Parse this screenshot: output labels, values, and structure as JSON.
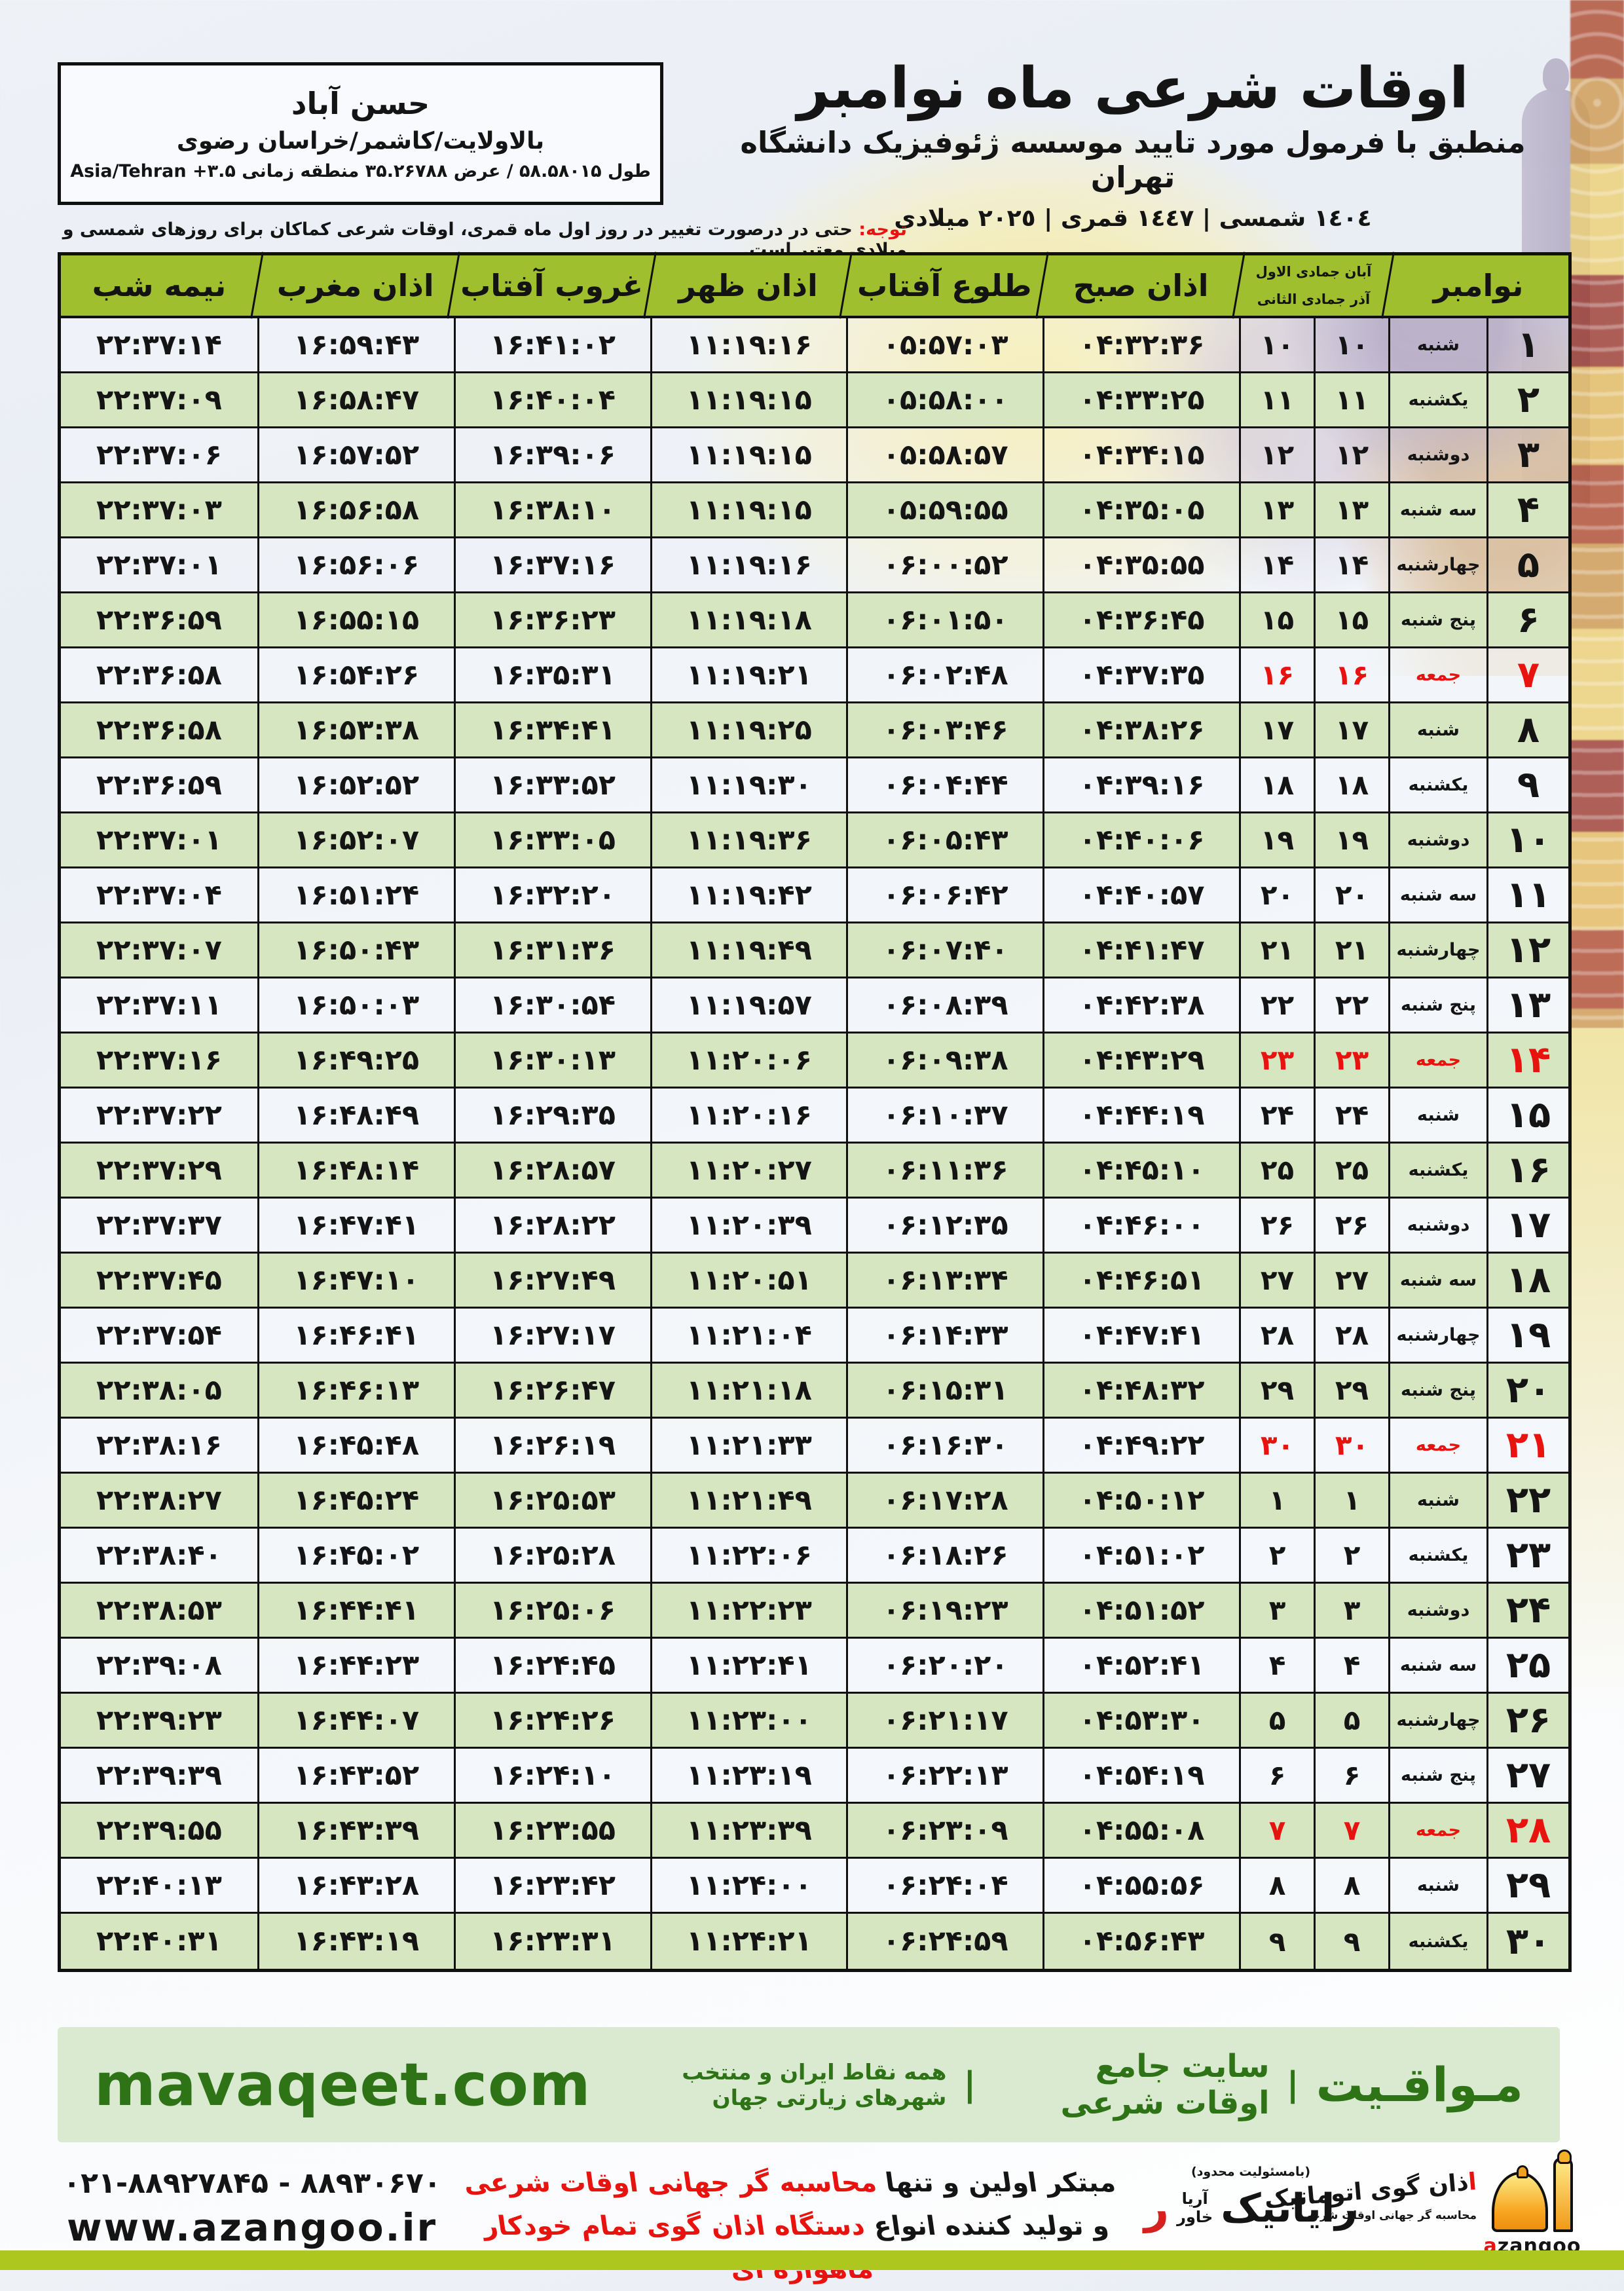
{
  "location_box": {
    "city": "حسن آباد",
    "region": "بالاولایت/کاشمر/خراسان رضوی",
    "coords": "طول ۵۸.۵۸۰۱۵ / عرض ۳۵.۲۶۷۸۸ منطقه زمانی Asia/Tehran +۳.۵"
  },
  "header": {
    "title": "اوقات شرعی ماه نوامبر",
    "subtitle": "منطبق با فرمول مورد تایید موسسه ژئوفیزیک دانشگاه تهران",
    "years": "١٤٠٤ شمسی | ١٤٤٧ قمری | ٢٠٢٥ میلادی"
  },
  "notice": {
    "label": "توجه:",
    "text": " حتی در درصورت تغییر در روز اول ماه قمری، اوقات شرعی کماکان برای روزهای شمسی و میلادی معتبر است."
  },
  "table": {
    "month_col": "نوامبر",
    "sub_col_top": "آبان  جمادی الاول",
    "sub_col_bottom": "آذر  جمادی الثانی",
    "time_cols": [
      "اذان صبح",
      "طلوع آفتاب",
      "اذان ظهر",
      "غروب آفتاب",
      "اذان مغرب",
      "نیمه شب"
    ],
    "rows": [
      {
        "day": "۱",
        "weekday": "شنبه",
        "solar": "۱۰",
        "lunar": "۱۰",
        "friday": false,
        "times": [
          "۰۴:۳۲:۳۶",
          "۰۵:۵۷:۰۳",
          "۱۱:۱۹:۱۶",
          "۱۶:۴۱:۰۲",
          "۱۶:۵۹:۴۳",
          "۲۲:۳۷:۱۴"
        ]
      },
      {
        "day": "۲",
        "weekday": "یکشنبه",
        "solar": "۱۱",
        "lunar": "۱۱",
        "friday": false,
        "times": [
          "۰۴:۳۳:۲۵",
          "۰۵:۵۸:۰۰",
          "۱۱:۱۹:۱۵",
          "۱۶:۴۰:۰۴",
          "۱۶:۵۸:۴۷",
          "۲۲:۳۷:۰۹"
        ]
      },
      {
        "day": "۳",
        "weekday": "دوشنبه",
        "solar": "۱۲",
        "lunar": "۱۲",
        "friday": false,
        "times": [
          "۰۴:۳۴:۱۵",
          "۰۵:۵۸:۵۷",
          "۱۱:۱۹:۱۵",
          "۱۶:۳۹:۰۶",
          "۱۶:۵۷:۵۲",
          "۲۲:۳۷:۰۶"
        ]
      },
      {
        "day": "۴",
        "weekday": "سه شنبه",
        "solar": "۱۳",
        "lunar": "۱۳",
        "friday": false,
        "times": [
          "۰۴:۳۵:۰۵",
          "۰۵:۵۹:۵۵",
          "۱۱:۱۹:۱۵",
          "۱۶:۳۸:۱۰",
          "۱۶:۵۶:۵۸",
          "۲۲:۳۷:۰۳"
        ]
      },
      {
        "day": "۵",
        "weekday": "چهارشنبه",
        "solar": "۱۴",
        "lunar": "۱۴",
        "friday": false,
        "times": [
          "۰۴:۳۵:۵۵",
          "۰۶:۰۰:۵۲",
          "۱۱:۱۹:۱۶",
          "۱۶:۳۷:۱۶",
          "۱۶:۵۶:۰۶",
          "۲۲:۳۷:۰۱"
        ]
      },
      {
        "day": "۶",
        "weekday": "پنج شنبه",
        "solar": "۱۵",
        "lunar": "۱۵",
        "friday": false,
        "times": [
          "۰۴:۳۶:۴۵",
          "۰۶:۰۱:۵۰",
          "۱۱:۱۹:۱۸",
          "۱۶:۳۶:۲۳",
          "۱۶:۵۵:۱۵",
          "۲۲:۳۶:۵۹"
        ]
      },
      {
        "day": "۷",
        "weekday": "جمعه",
        "solar": "۱۶",
        "lunar": "۱۶",
        "friday": true,
        "times": [
          "۰۴:۳۷:۳۵",
          "۰۶:۰۲:۴۸",
          "۱۱:۱۹:۲۱",
          "۱۶:۳۵:۳۱",
          "۱۶:۵۴:۲۶",
          "۲۲:۳۶:۵۸"
        ]
      },
      {
        "day": "۸",
        "weekday": "شنبه",
        "solar": "۱۷",
        "lunar": "۱۷",
        "friday": false,
        "times": [
          "۰۴:۳۸:۲۶",
          "۰۶:۰۳:۴۶",
          "۱۱:۱۹:۲۵",
          "۱۶:۳۴:۴۱",
          "۱۶:۵۳:۳۸",
          "۲۲:۳۶:۵۸"
        ]
      },
      {
        "day": "۹",
        "weekday": "یکشنبه",
        "solar": "۱۸",
        "lunar": "۱۸",
        "friday": false,
        "times": [
          "۰۴:۳۹:۱۶",
          "۰۶:۰۴:۴۴",
          "۱۱:۱۹:۳۰",
          "۱۶:۳۳:۵۲",
          "۱۶:۵۲:۵۲",
          "۲۲:۳۶:۵۹"
        ]
      },
      {
        "day": "۱۰",
        "weekday": "دوشنبه",
        "solar": "۱۹",
        "lunar": "۱۹",
        "friday": false,
        "times": [
          "۰۴:۴۰:۰۶",
          "۰۶:۰۵:۴۳",
          "۱۱:۱۹:۳۶",
          "۱۶:۳۳:۰۵",
          "۱۶:۵۲:۰۷",
          "۲۲:۳۷:۰۱"
        ]
      },
      {
        "day": "۱۱",
        "weekday": "سه شنبه",
        "solar": "۲۰",
        "lunar": "۲۰",
        "friday": false,
        "times": [
          "۰۴:۴۰:۵۷",
          "۰۶:۰۶:۴۲",
          "۱۱:۱۹:۴۲",
          "۱۶:۳۲:۲۰",
          "۱۶:۵۱:۲۴",
          "۲۲:۳۷:۰۴"
        ]
      },
      {
        "day": "۱۲",
        "weekday": "چهارشنبه",
        "solar": "۲۱",
        "lunar": "۲۱",
        "friday": false,
        "times": [
          "۰۴:۴۱:۴۷",
          "۰۶:۰۷:۴۰",
          "۱۱:۱۹:۴۹",
          "۱۶:۳۱:۳۶",
          "۱۶:۵۰:۴۳",
          "۲۲:۳۷:۰۷"
        ]
      },
      {
        "day": "۱۳",
        "weekday": "پنج شنبه",
        "solar": "۲۲",
        "lunar": "۲۲",
        "friday": false,
        "times": [
          "۰۴:۴۲:۳۸",
          "۰۶:۰۸:۳۹",
          "۱۱:۱۹:۵۷",
          "۱۶:۳۰:۵۴",
          "۱۶:۵۰:۰۳",
          "۲۲:۳۷:۱۱"
        ]
      },
      {
        "day": "۱۴",
        "weekday": "جمعه",
        "solar": "۲۳",
        "lunar": "۲۳",
        "friday": true,
        "times": [
          "۰۴:۴۳:۲۹",
          "۰۶:۰۹:۳۸",
          "۱۱:۲۰:۰۶",
          "۱۶:۳۰:۱۳",
          "۱۶:۴۹:۲۵",
          "۲۲:۳۷:۱۶"
        ]
      },
      {
        "day": "۱۵",
        "weekday": "شنبه",
        "solar": "۲۴",
        "lunar": "۲۴",
        "friday": false,
        "times": [
          "۰۴:۴۴:۱۹",
          "۰۶:۱۰:۳۷",
          "۱۱:۲۰:۱۶",
          "۱۶:۲۹:۳۵",
          "۱۶:۴۸:۴۹",
          "۲۲:۳۷:۲۲"
        ]
      },
      {
        "day": "۱۶",
        "weekday": "یکشنبه",
        "solar": "۲۵",
        "lunar": "۲۵",
        "friday": false,
        "times": [
          "۰۴:۴۵:۱۰",
          "۰۶:۱۱:۳۶",
          "۱۱:۲۰:۲۷",
          "۱۶:۲۸:۵۷",
          "۱۶:۴۸:۱۴",
          "۲۲:۳۷:۲۹"
        ]
      },
      {
        "day": "۱۷",
        "weekday": "دوشنبه",
        "solar": "۲۶",
        "lunar": "۲۶",
        "friday": false,
        "times": [
          "۰۴:۴۶:۰۰",
          "۰۶:۱۲:۳۵",
          "۱۱:۲۰:۳۹",
          "۱۶:۲۸:۲۲",
          "۱۶:۴۷:۴۱",
          "۲۲:۳۷:۳۷"
        ]
      },
      {
        "day": "۱۸",
        "weekday": "سه شنبه",
        "solar": "۲۷",
        "lunar": "۲۷",
        "friday": false,
        "times": [
          "۰۴:۴۶:۵۱",
          "۰۶:۱۳:۳۴",
          "۱۱:۲۰:۵۱",
          "۱۶:۲۷:۴۹",
          "۱۶:۴۷:۱۰",
          "۲۲:۳۷:۴۵"
        ]
      },
      {
        "day": "۱۹",
        "weekday": "چهارشنبه",
        "solar": "۲۸",
        "lunar": "۲۸",
        "friday": false,
        "times": [
          "۰۴:۴۷:۴۱",
          "۰۶:۱۴:۳۳",
          "۱۱:۲۱:۰۴",
          "۱۶:۲۷:۱۷",
          "۱۶:۴۶:۴۱",
          "۲۲:۳۷:۵۴"
        ]
      },
      {
        "day": "۲۰",
        "weekday": "پنج شنبه",
        "solar": "۲۹",
        "lunar": "۲۹",
        "friday": false,
        "times": [
          "۰۴:۴۸:۳۲",
          "۰۶:۱۵:۳۱",
          "۱۱:۲۱:۱۸",
          "۱۶:۲۶:۴۷",
          "۱۶:۴۶:۱۳",
          "۲۲:۳۸:۰۵"
        ]
      },
      {
        "day": "۲۱",
        "weekday": "جمعه",
        "solar": "۳۰",
        "lunar": "۳۰",
        "friday": true,
        "times": [
          "۰۴:۴۹:۲۲",
          "۰۶:۱۶:۳۰",
          "۱۱:۲۱:۳۳",
          "۱۶:۲۶:۱۹",
          "۱۶:۴۵:۴۸",
          "۲۲:۳۸:۱۶"
        ]
      },
      {
        "day": "۲۲",
        "weekday": "شنبه",
        "solar": "۱",
        "lunar": "۱",
        "friday": false,
        "times": [
          "۰۴:۵۰:۱۲",
          "۰۶:۱۷:۲۸",
          "۱۱:۲۱:۴۹",
          "۱۶:۲۵:۵۳",
          "۱۶:۴۵:۲۴",
          "۲۲:۳۸:۲۷"
        ]
      },
      {
        "day": "۲۳",
        "weekday": "یکشنبه",
        "solar": "۲",
        "lunar": "۲",
        "friday": false,
        "times": [
          "۰۴:۵۱:۰۲",
          "۰۶:۱۸:۲۶",
          "۱۱:۲۲:۰۶",
          "۱۶:۲۵:۲۸",
          "۱۶:۴۵:۰۲",
          "۲۲:۳۸:۴۰"
        ]
      },
      {
        "day": "۲۴",
        "weekday": "دوشنبه",
        "solar": "۳",
        "lunar": "۳",
        "friday": false,
        "times": [
          "۰۴:۵۱:۵۲",
          "۰۶:۱۹:۲۳",
          "۱۱:۲۲:۲۳",
          "۱۶:۲۵:۰۶",
          "۱۶:۴۴:۴۱",
          "۲۲:۳۸:۵۳"
        ]
      },
      {
        "day": "۲۵",
        "weekday": "سه شنبه",
        "solar": "۴",
        "lunar": "۴",
        "friday": false,
        "times": [
          "۰۴:۵۲:۴۱",
          "۰۶:۲۰:۲۰",
          "۱۱:۲۲:۴۱",
          "۱۶:۲۴:۴۵",
          "۱۶:۴۴:۲۳",
          "۲۲:۳۹:۰۸"
        ]
      },
      {
        "day": "۲۶",
        "weekday": "چهارشنبه",
        "solar": "۵",
        "lunar": "۵",
        "friday": false,
        "times": [
          "۰۴:۵۳:۳۰",
          "۰۶:۲۱:۱۷",
          "۱۱:۲۳:۰۰",
          "۱۶:۲۴:۲۶",
          "۱۶:۴۴:۰۷",
          "۲۲:۳۹:۲۳"
        ]
      },
      {
        "day": "۲۷",
        "weekday": "پنج شنبه",
        "solar": "۶",
        "lunar": "۶",
        "friday": false,
        "times": [
          "۰۴:۵۴:۱۹",
          "۰۶:۲۲:۱۳",
          "۱۱:۲۳:۱۹",
          "۱۶:۲۴:۱۰",
          "۱۶:۴۳:۵۲",
          "۲۲:۳۹:۳۹"
        ]
      },
      {
        "day": "۲۸",
        "weekday": "جمعه",
        "solar": "۷",
        "lunar": "۷",
        "friday": true,
        "times": [
          "۰۴:۵۵:۰۸",
          "۰۶:۲۳:۰۹",
          "۱۱:۲۳:۳۹",
          "۱۶:۲۳:۵۵",
          "۱۶:۴۳:۳۹",
          "۲۲:۳۹:۵۵"
        ]
      },
      {
        "day": "۲۹",
        "weekday": "شنبه",
        "solar": "۸",
        "lunar": "۸",
        "friday": false,
        "times": [
          "۰۴:۵۵:۵۶",
          "۰۶:۲۴:۰۴",
          "۱۱:۲۴:۰۰",
          "۱۶:۲۳:۴۲",
          "۱۶:۴۳:۲۸",
          "۲۲:۴۰:۱۳"
        ]
      },
      {
        "day": "۳۰",
        "weekday": "یکشنبه",
        "solar": "۹",
        "lunar": "۹",
        "friday": false,
        "times": [
          "۰۴:۵۶:۴۳",
          "۰۶:۲۴:۵۹",
          "۱۱:۲۴:۲۱",
          "۱۶:۲۳:۳۱",
          "۱۶:۴۳:۱۹",
          "۲۲:۴۰:۳۱"
        ]
      }
    ]
  },
  "footer_band": {
    "brand": "مـواقـیت",
    "separator": "|",
    "site_desc": "سایت جامع اوقات شرعی",
    "coverage": "همه نقاط ایران و منتخب شهرهای زیارتی جهان",
    "url": "mavaqeet.com"
  },
  "bottom": {
    "phone": "۰۲۱-۸۸۹۲۷۸۴۵ - ۸۸۹۳۰۶۷۰",
    "website": "www.azangoo.ir",
    "line1_black": "مبتکر اولین و تنها ",
    "line1_red": "محاسبه گر جهانی اوقات شرعی",
    "line2_black": "و تولید کننده انواع ",
    "line2_red": "دستگاه اذان گوی تمام خودکار ماهواره ای",
    "rayanik_note": "(بامسئولیت محدود)",
    "rayanik_name": "رایانیک",
    "rayanik_sub1": "خاور",
    "rayanik_sub2": "آریا",
    "rayanik_mark": "ر",
    "azangoo_title_a": "ا",
    "azangoo_title_rest": "ذان گوی اتوماتیک",
    "azangoo_sub": "محاسبه گر جهانی اوقات شرعی",
    "azangoo_latin_a": "a",
    "azangoo_latin_rest": "zangoo"
  },
  "colors": {
    "header_green": "#9fbf2f",
    "row_green": "#d6e6c0",
    "row_light": "#f3f6fa",
    "friday_red": "#e8130e",
    "band_bg": "#d9ead0",
    "band_text": "#2f7317",
    "bottom_bar": "#adc71f",
    "logo_orange": "#f6a21c"
  }
}
